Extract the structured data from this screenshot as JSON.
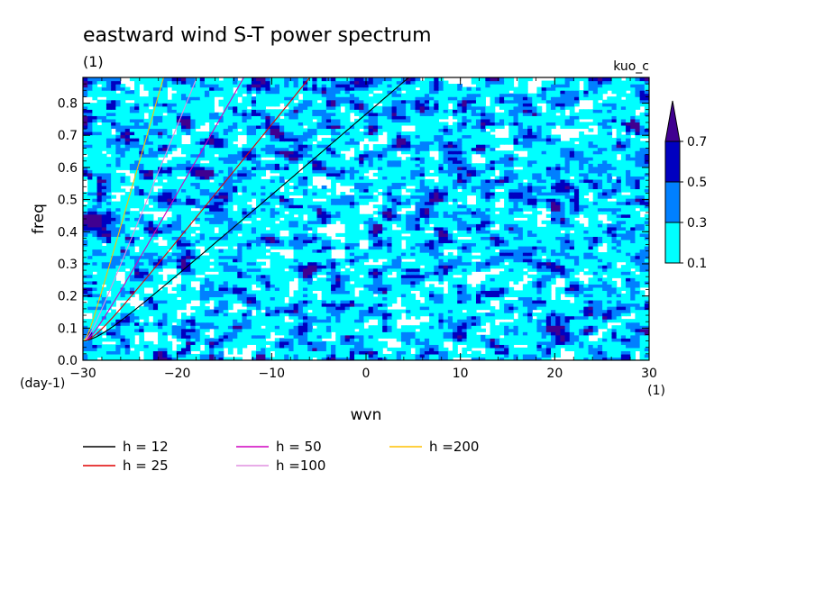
{
  "chart_data": {
    "type": "heatmap",
    "title": "eastward wind S-T power spectrum",
    "subtitle": "(1)",
    "corner_label": "kuo_c",
    "xlabel": "wvn",
    "ylabel": "freq",
    "xunit": "(1)",
    "yunit": "(day-1)",
    "xlim": [
      -30,
      30
    ],
    "ylim": [
      0,
      0.88
    ],
    "xticks": [
      -30,
      -20,
      -10,
      0,
      10,
      20,
      30
    ],
    "xtick_labels": [
      "−30",
      "−20",
      "−10",
      "0",
      "10",
      "20",
      "30"
    ],
    "yticks": [
      0.0,
      0.1,
      0.2,
      0.3,
      0.4,
      0.5,
      0.6,
      0.7,
      0.8
    ],
    "ytick_labels": [
      "0.0",
      "0.1",
      "0.2",
      "0.3",
      "0.4",
      "0.5",
      "0.6",
      "0.7",
      "0.8"
    ],
    "colorbar": {
      "levels": [
        0.1,
        0.3,
        0.5,
        0.7
      ],
      "labels": [
        "0.1",
        "0.3",
        "0.5",
        "0.7"
      ],
      "colors": [
        "#00ffff",
        "#0080ff",
        "#0000c0",
        "#400090"
      ]
    },
    "series": [
      {
        "name": "h = 12",
        "h": 12,
        "color": "#000000"
      },
      {
        "name": "h = 25",
        "h": 25,
        "color": "#e00000"
      },
      {
        "name": "h = 50",
        "h": 50,
        "color": "#d000c0"
      },
      {
        "name": "h =100",
        "h": 100,
        "color": "#e090e0"
      },
      {
        "name": "h =200",
        "h": 200,
        "color": "#ffc000"
      }
    ]
  }
}
